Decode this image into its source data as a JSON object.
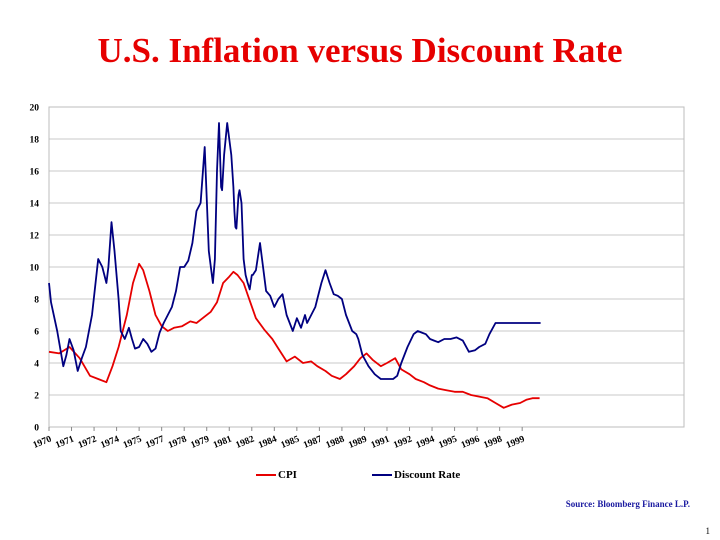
{
  "slide": {
    "title": "U.S. Inflation versus Discount Rate",
    "source": "Source: Bloomberg Finance L.P.",
    "page_number": "1"
  },
  "legend": [
    {
      "label": "CPI",
      "color": "#e60000"
    },
    {
      "label": "Discount Rate",
      "color": "#000080"
    }
  ],
  "chart_data": {
    "type": "line",
    "ylim": [
      0,
      20
    ],
    "xlim": [
      1970,
      2001
    ],
    "y_ticks": [
      0,
      2,
      4,
      6,
      8,
      10,
      12,
      14,
      16,
      18,
      20
    ],
    "x_tick_labels": [
      {
        "label": "1970",
        "x": 1970.0
      },
      {
        "label": "1971",
        "x": 1971.1
      },
      {
        "label": "1972",
        "x": 1972.2
      },
      {
        "label": "1974",
        "x": 1973.3
      },
      {
        "label": "1975",
        "x": 1974.4
      },
      {
        "label": "1977",
        "x": 1975.5
      },
      {
        "label": "1978",
        "x": 1976.6
      },
      {
        "label": "1979",
        "x": 1977.7
      },
      {
        "label": "1981",
        "x": 1978.8
      },
      {
        "label": "1982",
        "x": 1979.9
      },
      {
        "label": "1984",
        "x": 1981.0
      },
      {
        "label": "1985",
        "x": 1982.1
      },
      {
        "label": "1987",
        "x": 1983.2
      },
      {
        "label": "1988",
        "x": 1984.3
      },
      {
        "label": "1989",
        "x": 1985.4
      },
      {
        "label": "1991",
        "x": 1986.5
      },
      {
        "label": "1992",
        "x": 1987.6
      },
      {
        "label": "1994",
        "x": 1988.7
      },
      {
        "label": "1995",
        "x": 1989.8
      },
      {
        "label": "1996",
        "x": 1990.9
      },
      {
        "label": "1998",
        "x": 1992.0
      },
      {
        "label": "1999",
        "x": 1993.1
      }
    ],
    "grid": true,
    "legend_position": "bottom",
    "series": [
      {
        "name": "CPI",
        "color": "#e60000",
        "x": [
          1970.0,
          1970.5,
          1971.0,
          1971.5,
          1972.0,
          1972.4,
          1972.8,
          1973.1,
          1973.4,
          1973.8,
          1974.1,
          1974.4,
          1974.6,
          1974.9,
          1975.2,
          1975.5,
          1975.8,
          1976.1,
          1976.5,
          1976.9,
          1977.2,
          1977.6,
          1977.9,
          1978.2,
          1978.5,
          1978.8,
          1979.0,
          1979.2,
          1979.5,
          1979.8,
          1980.1,
          1980.5,
          1980.9,
          1981.2,
          1981.6,
          1982.0,
          1982.4,
          1982.8,
          1983.1,
          1983.5,
          1983.8,
          1984.2,
          1984.5,
          1984.9,
          1985.2,
          1985.5,
          1985.8,
          1986.2,
          1986.5,
          1986.9,
          1987.2,
          1987.6,
          1987.9,
          1988.3,
          1988.6,
          1989.0,
          1989.4,
          1989.8,
          1990.2,
          1990.6,
          1991.0,
          1991.4,
          1991.8,
          1992.2,
          1992.6,
          1993.0,
          1993.3,
          1993.6,
          1993.95
        ],
        "values": [
          4.7,
          4.6,
          5.0,
          4.3,
          3.2,
          3.0,
          2.8,
          3.8,
          5.0,
          7.0,
          9.0,
          10.2,
          9.8,
          8.5,
          7.0,
          6.3,
          6.0,
          6.2,
          6.3,
          6.6,
          6.5,
          6.9,
          7.2,
          7.8,
          9.0,
          9.4,
          9.7,
          9.5,
          9.0,
          7.9,
          6.8,
          6.1,
          5.5,
          4.9,
          4.1,
          4.4,
          4.0,
          4.1,
          3.8,
          3.5,
          3.2,
          3.0,
          3.3,
          3.8,
          4.3,
          4.6,
          4.2,
          3.8,
          4.0,
          4.3,
          3.6,
          3.3,
          3.0,
          2.8,
          2.6,
          2.4,
          2.3,
          2.2,
          2.2,
          2.0,
          1.9,
          1.8,
          1.5,
          1.2,
          1.4,
          1.5,
          1.7,
          1.8,
          1.8
        ]
      },
      {
        "name": "Discount Rate",
        "color": "#000080",
        "x": [
          1970.0,
          1970.1,
          1970.4,
          1970.7,
          1970.85,
          1971.0,
          1971.2,
          1971.4,
          1971.6,
          1971.8,
          1972.1,
          1972.4,
          1972.6,
          1972.8,
          1972.9,
          1973.05,
          1973.2,
          1973.4,
          1973.5,
          1973.7,
          1973.9,
          1974.05,
          1974.2,
          1974.4,
          1974.6,
          1974.8,
          1975.0,
          1975.2,
          1975.4,
          1975.6,
          1975.8,
          1976.0,
          1976.2,
          1976.4,
          1976.6,
          1976.8,
          1977.0,
          1977.2,
          1977.4,
          1977.6,
          1977.8,
          1978.0,
          1978.1,
          1978.2,
          1978.3,
          1978.4,
          1978.45,
          1978.55,
          1978.7,
          1978.9,
          1979.0,
          1979.05,
          1979.1,
          1979.15,
          1979.25,
          1979.3,
          1979.4,
          1979.5,
          1979.6,
          1979.7,
          1979.8,
          1979.9,
          1979.95,
          1980.1,
          1980.3,
          1980.6,
          1980.8,
          1981.0,
          1981.2,
          1981.4,
          1981.6,
          1981.9,
          1982.1,
          1982.3,
          1982.5,
          1982.6,
          1982.8,
          1983.0,
          1983.1,
          1983.3,
          1983.5,
          1983.7,
          1983.9,
          1984.1,
          1984.3,
          1984.5,
          1984.8,
          1985.0,
          1985.1,
          1985.3,
          1985.6,
          1985.9,
          1986.0,
          1986.2,
          1986.4,
          1986.6,
          1986.8,
          1987.0,
          1987.2,
          1987.5,
          1987.8,
          1988.0,
          1988.2,
          1988.4,
          1988.6,
          1988.8,
          1989.0,
          1989.3,
          1989.6,
          1989.9,
          1990.2,
          1990.5,
          1990.8,
          1991.0,
          1991.3,
          1991.5,
          1991.8,
          1992.0,
          1992.2,
          1992.5,
          1992.8,
          1993.0,
          1993.2,
          1993.4,
          1993.6,
          1993.8,
          1994.0
        ],
        "values": [
          9.0,
          7.8,
          6.0,
          3.8,
          4.5,
          5.5,
          4.8,
          3.5,
          4.3,
          5.0,
          7.0,
          10.5,
          10.0,
          9.0,
          10.0,
          12.8,
          11.0,
          8.0,
          6.0,
          5.5,
          6.2,
          5.5,
          4.9,
          5.0,
          5.5,
          5.2,
          4.7,
          4.9,
          5.9,
          6.5,
          7.0,
          7.5,
          8.5,
          10.0,
          10.0,
          10.4,
          11.5,
          13.5,
          14.0,
          17.5,
          11.0,
          9.0,
          10.5,
          16.0,
          19.0,
          15.0,
          14.8,
          17.0,
          19.0,
          17.0,
          15.0,
          13.5,
          12.5,
          12.4,
          14.5,
          14.8,
          14.0,
          10.5,
          9.5,
          9.0,
          8.6,
          9.5,
          9.5,
          9.8,
          11.5,
          8.5,
          8.2,
          7.5,
          8.0,
          8.3,
          7.0,
          6.0,
          6.8,
          6.2,
          7.0,
          6.5,
          7.0,
          7.5,
          8.0,
          9.0,
          9.8,
          9.0,
          8.3,
          8.2,
          8.0,
          7.0,
          6.0,
          5.8,
          5.5,
          4.5,
          3.8,
          3.3,
          3.2,
          3.0,
          3.0,
          3.0,
          3.0,
          3.2,
          4.0,
          5.0,
          5.8,
          6.0,
          5.9,
          5.8,
          5.5,
          5.4,
          5.3,
          5.5,
          5.5,
          5.6,
          5.4,
          4.7,
          4.8,
          5.0,
          5.2,
          5.8,
          6.5,
          6.5,
          6.5,
          6.5,
          6.5,
          6.5,
          6.5,
          6.5,
          6.5,
          6.5,
          6.5
        ]
      }
    ]
  }
}
